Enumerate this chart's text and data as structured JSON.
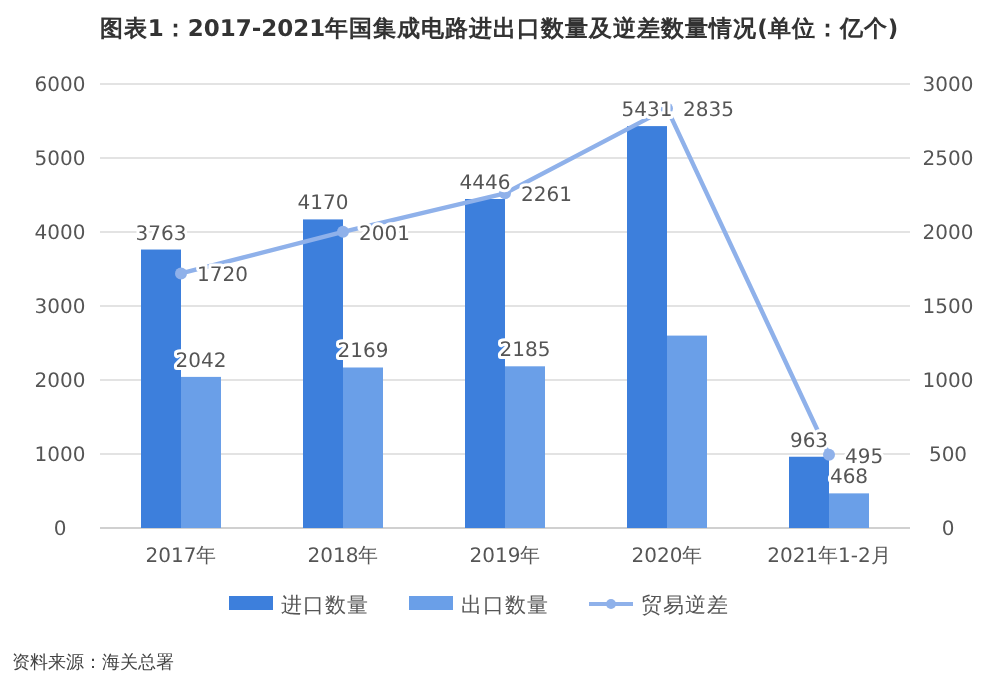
{
  "chart_data": {
    "type": "bar",
    "title": "图表1：2017-2021年国集成电路进出口数量及逆差数量情况(单位：亿个)",
    "categories": [
      "2017年",
      "2018年",
      "2019年",
      "2020年",
      "2021年1-2月"
    ],
    "series": [
      {
        "name": "进口数量",
        "color": "#3d7fdc",
        "values": [
          3763,
          4170,
          4446,
          5431,
          963
        ],
        "value_labels": [
          "3763",
          "4170",
          "4446",
          "5431",
          "963"
        ]
      },
      {
        "name": "出口数量",
        "color": "#6a9fe8",
        "values": [
          2042,
          2169,
          2185,
          2600,
          468
        ],
        "value_labels": [
          "2042",
          "2169",
          "2185",
          null,
          "468"
        ]
      },
      {
        "name": "贸易逆差",
        "type": "line",
        "axis": "y2",
        "color": "#8fb1ea",
        "marker": "circle",
        "values": [
          1720,
          2001,
          2261,
          2835,
          495
        ],
        "value_labels": [
          "1720",
          "2001",
          "2261",
          "2835",
          "495"
        ]
      }
    ],
    "ylim": [
      0,
      6000
    ],
    "yticks": [
      0,
      1000,
      2000,
      3000,
      4000,
      5000,
      6000
    ],
    "y2lim": [
      0,
      3000
    ],
    "y2ticks": [
      0,
      500,
      1000,
      1500,
      2000,
      2500,
      3000
    ],
    "grid": "y",
    "legend": "bottom",
    "annotations": [
      "资料来源：海关总署"
    ]
  }
}
